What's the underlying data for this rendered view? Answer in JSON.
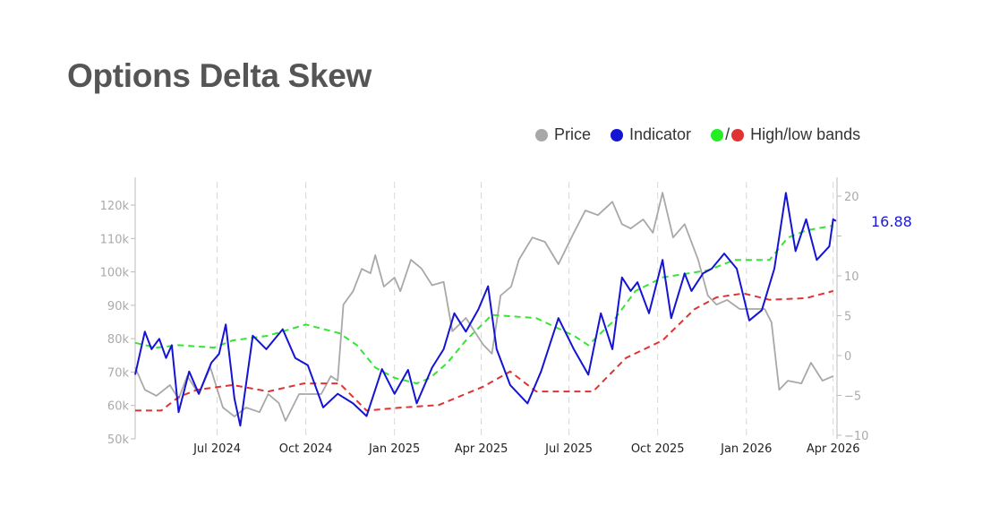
{
  "title": "Options Delta Skew",
  "legend": {
    "price": "Price",
    "indicator": "Indicator",
    "bands_slash": "/",
    "bands": "High/low bands"
  },
  "colors": {
    "price": "#a8a8a8",
    "indicator": "#1414d2",
    "high_band": "#33e633",
    "low_band": "#e03333",
    "title": "#555555"
  },
  "chart_data": {
    "type": "line",
    "xlim": [
      "2024-04-07",
      "2026-04-05"
    ],
    "x_ticks": [
      {
        "date": "2024-07-01",
        "label": "Jul 2024"
      },
      {
        "date": "2024-10-01",
        "label": "Oct 2024"
      },
      {
        "date": "2025-01-01",
        "label": "Jan 2025"
      },
      {
        "date": "2025-04-01",
        "label": "Apr 2025"
      },
      {
        "date": "2025-07-01",
        "label": "Jul 2025"
      },
      {
        "date": "2025-10-01",
        "label": "Oct 2025"
      },
      {
        "date": "2026-01-01",
        "label": "Jan 2026"
      },
      {
        "date": "2026-04-01",
        "label": "Apr 2026"
      }
    ],
    "grid": "vertical dashed at x ticks",
    "legend_position": "top-right",
    "left_axis": {
      "ylim": [
        50000,
        127000
      ],
      "ticks": [
        50000,
        60000,
        70000,
        80000,
        90000,
        100000,
        110000,
        120000
      ],
      "tick_labels": [
        "50k",
        "60k",
        "70k",
        "80k",
        "90k",
        "100k",
        "110k",
        "120k"
      ]
    },
    "right_axis": {
      "ylim": [
        -10,
        22
      ],
      "ticks": [
        -10,
        -5,
        0,
        5,
        10,
        15,
        20
      ],
      "tick_labels": [
        "−10",
        "−5",
        "0",
        "5",
        "10",
        "",
        "20"
      ]
    },
    "last_value_label": "16.88",
    "series": [
      {
        "name": "Price",
        "axis": "left",
        "style": "solid",
        "points": [
          [
            "2024-04-07",
            71400
          ],
          [
            "2024-04-17",
            64700
          ],
          [
            "2024-04-29",
            62900
          ],
          [
            "2024-05-13",
            66100
          ],
          [
            "2024-05-22",
            62000
          ],
          [
            "2024-05-31",
            68800
          ],
          [
            "2024-06-12",
            63400
          ],
          [
            "2024-06-24",
            71400
          ],
          [
            "2024-07-07",
            59400
          ],
          [
            "2024-07-19",
            56700
          ],
          [
            "2024-07-31",
            59400
          ],
          [
            "2024-08-14",
            58000
          ],
          [
            "2024-08-23",
            63400
          ],
          [
            "2024-09-03",
            60700
          ],
          [
            "2024-09-10",
            55400
          ],
          [
            "2024-09-24",
            63400
          ],
          [
            "2024-10-03",
            63400
          ],
          [
            "2024-10-17",
            63400
          ],
          [
            "2024-10-27",
            68800
          ],
          [
            "2024-11-03",
            67400
          ],
          [
            "2024-11-09",
            90200
          ],
          [
            "2024-11-19",
            94200
          ],
          [
            "2024-11-28",
            100900
          ],
          [
            "2024-12-07",
            99600
          ],
          [
            "2024-12-12",
            105000
          ],
          [
            "2024-12-21",
            95600
          ],
          [
            "2025-01-01",
            98300
          ],
          [
            "2025-01-07",
            94200
          ],
          [
            "2025-01-18",
            103600
          ],
          [
            "2025-01-29",
            101000
          ],
          [
            "2025-02-09",
            96000
          ],
          [
            "2025-02-21",
            97000
          ],
          [
            "2025-03-02",
            82200
          ],
          [
            "2025-03-16",
            86200
          ],
          [
            "2025-04-03",
            78200
          ],
          [
            "2025-04-12",
            75500
          ],
          [
            "2025-04-21",
            92900
          ],
          [
            "2025-05-02",
            95600
          ],
          [
            "2025-05-10",
            103600
          ],
          [
            "2025-05-24",
            110300
          ],
          [
            "2025-06-06",
            109000
          ],
          [
            "2025-06-20",
            102300
          ],
          [
            "2025-07-06",
            111700
          ],
          [
            "2025-07-18",
            118400
          ],
          [
            "2025-07-31",
            117000
          ],
          [
            "2025-08-15",
            121000
          ],
          [
            "2025-08-25",
            114300
          ],
          [
            "2025-09-03",
            113000
          ],
          [
            "2025-09-16",
            115700
          ],
          [
            "2025-09-26",
            111700
          ],
          [
            "2025-10-06",
            123700
          ],
          [
            "2025-10-17",
            110300
          ],
          [
            "2025-10-29",
            114300
          ],
          [
            "2025-11-12",
            103600
          ],
          [
            "2025-11-22",
            92900
          ],
          [
            "2025-12-01",
            90200
          ],
          [
            "2025-12-12",
            91600
          ],
          [
            "2025-12-25",
            88900
          ],
          [
            "2026-01-06",
            88900
          ],
          [
            "2026-01-20",
            88900
          ],
          [
            "2026-01-27",
            84900
          ],
          [
            "2026-02-04",
            64700
          ],
          [
            "2026-02-13",
            67400
          ],
          [
            "2026-02-27",
            66600
          ],
          [
            "2026-03-09",
            72800
          ],
          [
            "2026-03-21",
            67400
          ],
          [
            "2026-04-01",
            68800
          ]
        ]
      },
      {
        "name": "Indicator",
        "axis": "right",
        "style": "solid",
        "points": [
          [
            "2024-04-07",
            -2.4
          ],
          [
            "2024-04-17",
            3.0
          ],
          [
            "2024-04-24",
            0.8
          ],
          [
            "2024-05-02",
            2.1
          ],
          [
            "2024-05-09",
            -0.3
          ],
          [
            "2024-05-15",
            1.3
          ],
          [
            "2024-05-22",
            -7.1
          ],
          [
            "2024-06-02",
            -2.0
          ],
          [
            "2024-06-12",
            -4.8
          ],
          [
            "2024-06-25",
            -0.9
          ],
          [
            "2024-07-03",
            0.2
          ],
          [
            "2024-07-10",
            3.9
          ],
          [
            "2024-07-19",
            -5.4
          ],
          [
            "2024-07-25",
            -8.8
          ],
          [
            "2024-08-07",
            2.5
          ],
          [
            "2024-08-21",
            0.8
          ],
          [
            "2024-09-07",
            3.3
          ],
          [
            "2024-09-20",
            -0.3
          ],
          [
            "2024-10-03",
            -1.2
          ],
          [
            "2024-10-19",
            -6.5
          ],
          [
            "2024-11-03",
            -4.8
          ],
          [
            "2024-11-19",
            -6.0
          ],
          [
            "2024-12-03",
            -7.6
          ],
          [
            "2024-12-19",
            -1.7
          ],
          [
            "2025-01-01",
            -4.8
          ],
          [
            "2025-01-15",
            -1.8
          ],
          [
            "2025-01-24",
            -6.0
          ],
          [
            "2025-02-09",
            -1.5
          ],
          [
            "2025-02-21",
            0.8
          ],
          [
            "2025-03-04",
            5.3
          ],
          [
            "2025-03-16",
            3.0
          ],
          [
            "2025-03-29",
            5.8
          ],
          [
            "2025-04-08",
            8.7
          ],
          [
            "2025-04-17",
            0.8
          ],
          [
            "2025-05-01",
            -3.7
          ],
          [
            "2025-05-19",
            -6.0
          ],
          [
            "2025-06-02",
            -2.0
          ],
          [
            "2025-06-20",
            4.7
          ],
          [
            "2025-07-06",
            0.8
          ],
          [
            "2025-07-21",
            -2.4
          ],
          [
            "2025-08-03",
            5.3
          ],
          [
            "2025-08-15",
            0.8
          ],
          [
            "2025-08-25",
            9.8
          ],
          [
            "2025-09-03",
            8.1
          ],
          [
            "2025-09-10",
            9.2
          ],
          [
            "2025-09-22",
            5.3
          ],
          [
            "2025-10-06",
            12.0
          ],
          [
            "2025-10-15",
            4.7
          ],
          [
            "2025-10-29",
            10.3
          ],
          [
            "2025-11-05",
            8.1
          ],
          [
            "2025-11-17",
            10.3
          ],
          [
            "2025-11-26",
            10.9
          ],
          [
            "2025-12-09",
            12.8
          ],
          [
            "2025-12-22",
            10.9
          ],
          [
            "2026-01-04",
            4.4
          ],
          [
            "2026-01-17",
            5.7
          ],
          [
            "2026-01-30",
            10.9
          ],
          [
            "2026-02-11",
            20.4
          ],
          [
            "2026-02-21",
            13.1
          ],
          [
            "2026-03-04",
            17.1
          ],
          [
            "2026-03-15",
            12.0
          ],
          [
            "2026-03-28",
            13.7
          ],
          [
            "2026-04-01",
            17.1
          ],
          [
            "2026-04-04",
            16.88
          ]
        ]
      },
      {
        "name": "High band",
        "axis": "right",
        "style": "dashed",
        "points": [
          [
            "2024-04-07",
            1.6
          ],
          [
            "2024-04-29",
            1.0
          ],
          [
            "2024-05-22",
            1.3
          ],
          [
            "2024-06-28",
            1.0
          ],
          [
            "2024-07-17",
            1.9
          ],
          [
            "2024-08-23",
            2.5
          ],
          [
            "2024-10-01",
            3.9
          ],
          [
            "2024-11-05",
            2.8
          ],
          [
            "2024-11-23",
            1.3
          ],
          [
            "2024-12-12",
            -1.5
          ],
          [
            "2025-01-01",
            -2.8
          ],
          [
            "2025-01-24",
            -3.5
          ],
          [
            "2025-02-07",
            -2.8
          ],
          [
            "2025-02-25",
            -0.9
          ],
          [
            "2025-03-16",
            1.9
          ],
          [
            "2025-04-12",
            5.1
          ],
          [
            "2025-05-28",
            4.7
          ],
          [
            "2025-07-06",
            2.5
          ],
          [
            "2025-07-21",
            1.3
          ],
          [
            "2025-08-15",
            4.2
          ],
          [
            "2025-09-08",
            8.1
          ],
          [
            "2025-10-06",
            9.8
          ],
          [
            "2025-11-22",
            10.7
          ],
          [
            "2025-12-20",
            12.0
          ],
          [
            "2026-01-25",
            12.0
          ],
          [
            "2026-02-13",
            14.8
          ],
          [
            "2026-03-04",
            15.7
          ],
          [
            "2026-04-01",
            16.3
          ]
        ]
      },
      {
        "name": "Low band",
        "axis": "right",
        "style": "dashed",
        "points": [
          [
            "2024-04-07",
            -6.9
          ],
          [
            "2024-05-04",
            -6.9
          ],
          [
            "2024-05-22",
            -5.2
          ],
          [
            "2024-06-10",
            -4.3
          ],
          [
            "2024-07-17",
            -3.7
          ],
          [
            "2024-08-23",
            -4.5
          ],
          [
            "2024-09-29",
            -3.5
          ],
          [
            "2024-11-05",
            -3.5
          ],
          [
            "2024-12-03",
            -6.9
          ],
          [
            "2025-01-10",
            -6.5
          ],
          [
            "2025-02-16",
            -6.2
          ],
          [
            "2025-04-03",
            -3.9
          ],
          [
            "2025-05-01",
            -2.0
          ],
          [
            "2025-05-28",
            -4.5
          ],
          [
            "2025-07-26",
            -4.5
          ],
          [
            "2025-08-29",
            -0.3
          ],
          [
            "2025-10-06",
            1.9
          ],
          [
            "2025-11-08",
            5.8
          ],
          [
            "2025-12-01",
            7.3
          ],
          [
            "2025-12-29",
            7.8
          ],
          [
            "2026-01-25",
            7.0
          ],
          [
            "2026-03-04",
            7.2
          ],
          [
            "2026-04-01",
            8.1
          ]
        ]
      }
    ]
  }
}
